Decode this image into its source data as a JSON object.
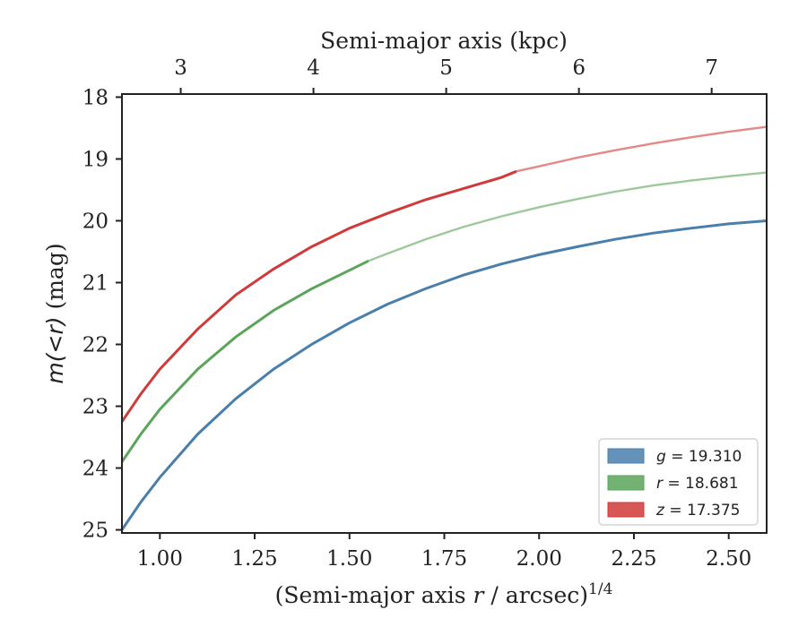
{
  "chart_data": {
    "type": "line",
    "xlabel": "(Semi-major axis r / arcsec)^1/4",
    "xlabel_parts": {
      "pre": "(Semi-major axis ",
      "var": "r",
      "post": " / arcsec)",
      "sup": "1/4"
    },
    "ylabel": "m(<r) (mag)",
    "ylabel_parts": {
      "math": "m(<r)",
      "post": " (mag)"
    },
    "top_xlabel": "Semi-major axis (kpc)",
    "xlim": [
      0.9,
      2.6
    ],
    "ylim": [
      25.05,
      17.95
    ],
    "y_inverted": true,
    "x_ticks": [
      1.0,
      1.25,
      1.5,
      1.75,
      2.0,
      2.25,
      2.5
    ],
    "x_tick_labels": [
      "1.00",
      "1.25",
      "1.50",
      "1.75",
      "2.00",
      "2.25",
      "2.50"
    ],
    "y_ticks": [
      18,
      19,
      20,
      21,
      22,
      23,
      24,
      25
    ],
    "y_tick_labels": [
      "18",
      "19",
      "20",
      "21",
      "22",
      "23",
      "24",
      "25"
    ],
    "top_ticks_kpc": [
      3,
      4,
      5,
      6,
      7
    ],
    "top_tick_labels": [
      "3",
      "4",
      "5",
      "6",
      "7"
    ],
    "top_tick_positions_x": [
      1.055,
      1.405,
      1.755,
      2.105,
      2.455
    ],
    "legend_position": "lower right",
    "series": [
      {
        "name": "g = 19.310",
        "legend_var": "g",
        "legend_value": "19.310",
        "color": "#4a7fab",
        "solid_until_x": 2.6,
        "x": [
          0.9,
          0.95,
          1.0,
          1.1,
          1.2,
          1.3,
          1.4,
          1.5,
          1.6,
          1.7,
          1.8,
          1.9,
          2.0,
          2.1,
          2.2,
          2.3,
          2.4,
          2.5,
          2.6
        ],
        "y": [
          25.0,
          24.55,
          24.15,
          23.45,
          22.88,
          22.4,
          22.0,
          21.65,
          21.35,
          21.1,
          20.88,
          20.7,
          20.55,
          20.42,
          20.3,
          20.2,
          20.12,
          20.05,
          20.0
        ]
      },
      {
        "name": "r = 18.681",
        "legend_var": "r",
        "legend_value": "18.681",
        "color": "#5aa55a",
        "solid_until_x": 1.55,
        "x": [
          0.9,
          0.95,
          1.0,
          1.1,
          1.2,
          1.3,
          1.4,
          1.5,
          1.55,
          1.6,
          1.7,
          1.8,
          1.9,
          2.0,
          2.1,
          2.2,
          2.3,
          2.4,
          2.5,
          2.6
        ],
        "y": [
          23.9,
          23.45,
          23.05,
          22.4,
          21.88,
          21.45,
          21.1,
          20.8,
          20.65,
          20.53,
          20.3,
          20.1,
          19.93,
          19.78,
          19.65,
          19.53,
          19.43,
          19.35,
          19.28,
          19.22
        ]
      },
      {
        "name": "z = 17.375",
        "legend_var": "z",
        "legend_value": "17.375",
        "color": "#d03a3a",
        "solid_until_x": 1.94,
        "x": [
          0.9,
          0.95,
          1.0,
          1.1,
          1.2,
          1.3,
          1.4,
          1.5,
          1.6,
          1.7,
          1.8,
          1.9,
          1.94,
          2.0,
          2.1,
          2.2,
          2.3,
          2.4,
          2.5,
          2.6
        ],
        "y": [
          23.25,
          22.8,
          22.4,
          21.75,
          21.2,
          20.78,
          20.42,
          20.12,
          19.88,
          19.66,
          19.48,
          19.3,
          19.2,
          19.12,
          18.98,
          18.86,
          18.75,
          18.65,
          18.56,
          18.48
        ]
      }
    ]
  }
}
